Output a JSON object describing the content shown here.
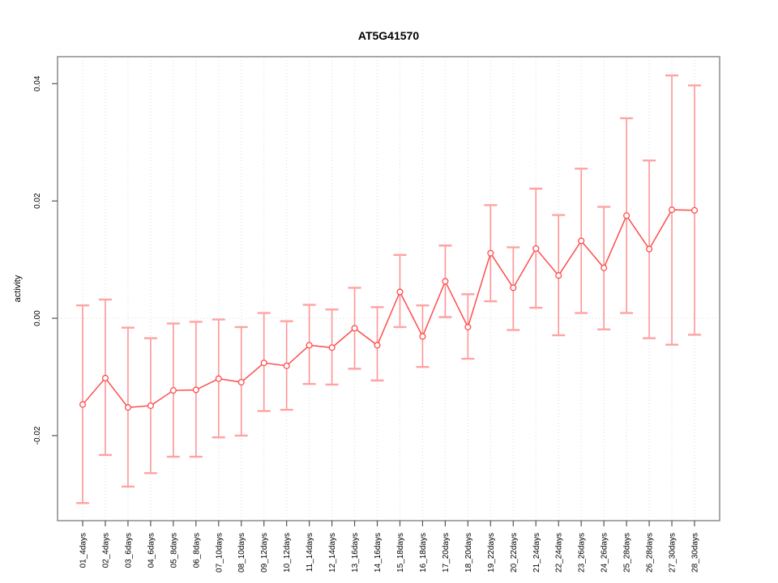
{
  "chart_data": {
    "type": "line",
    "title": "AT5G41570",
    "xlabel": "",
    "ylabel": "activity",
    "categories": [
      "01_4days",
      "02_4days",
      "03_6days",
      "04_6days",
      "05_8days",
      "06_8days",
      "07_10days",
      "08_10days",
      "09_12days",
      "10_12days",
      "11_14days",
      "12_14days",
      "13_16days",
      "14_16days",
      "15_18days",
      "16_18days",
      "17_20days",
      "18_20days",
      "19_22days",
      "20_22days",
      "21_24days",
      "22_24days",
      "23_26days",
      "24_26days",
      "25_28days",
      "26_28days",
      "27_30days",
      "28_30days"
    ],
    "series": [
      {
        "name": "activity",
        "values": [
          -0.0147,
          -0.0102,
          -0.0152,
          -0.0149,
          -0.0123,
          -0.0122,
          -0.0103,
          -0.0109,
          -0.0076,
          -0.0081,
          -0.0046,
          -0.005,
          -0.0017,
          -0.0046,
          0.0045,
          -0.0031,
          0.0063,
          -0.0015,
          0.0111,
          0.0052,
          0.0119,
          0.0073,
          0.0132,
          0.0086,
          0.0175,
          0.0118,
          0.0185,
          0.0184
        ],
        "error_high": [
          0.0022,
          0.0032,
          -0.0016,
          -0.0034,
          -0.0009,
          -0.0006,
          -0.0002,
          -0.0015,
          0.0009,
          -0.0005,
          0.0023,
          0.0015,
          0.0052,
          0.0019,
          0.0108,
          0.0022,
          0.0124,
          0.0041,
          0.0193,
          0.0121,
          0.0221,
          0.0176,
          0.0255,
          0.019,
          0.0341,
          0.0269,
          0.0414,
          0.0397
        ],
        "error_low": [
          -0.0315,
          -0.0233,
          -0.0287,
          -0.0264,
          -0.0236,
          -0.0236,
          -0.0203,
          -0.02,
          -0.0158,
          -0.0156,
          -0.0112,
          -0.0113,
          -0.0086,
          -0.0106,
          -0.0015,
          -0.0083,
          0.0002,
          -0.0069,
          0.0029,
          -0.002,
          0.0018,
          -0.0029,
          0.0009,
          -0.0019,
          0.0009,
          -0.0034,
          -0.0045,
          -0.0028
        ]
      }
    ],
    "ylim": [
      -0.0345,
      0.0446
    ],
    "yticks": {
      "values": [
        -0.02,
        0.0,
        0.02,
        0.04
      ],
      "labels": [
        "-0.02",
        "0.00",
        "0.02",
        "0.04"
      ]
    },
    "grid": "vertical dotted line at each category; dotted horizontal line at y=0",
    "legend_position": "none",
    "marker": "open-circle",
    "colors": {
      "series_line": "#ff4d4d",
      "marker_stroke": "#ff4d4d",
      "error_bar": "#ff9595",
      "error_cap": "#ffa2a2",
      "gridline": "#dadada",
      "zero_line": "#e2e2e2",
      "plot_border": "#8c8c8c",
      "tick": "#555555",
      "text": "#000000"
    }
  }
}
